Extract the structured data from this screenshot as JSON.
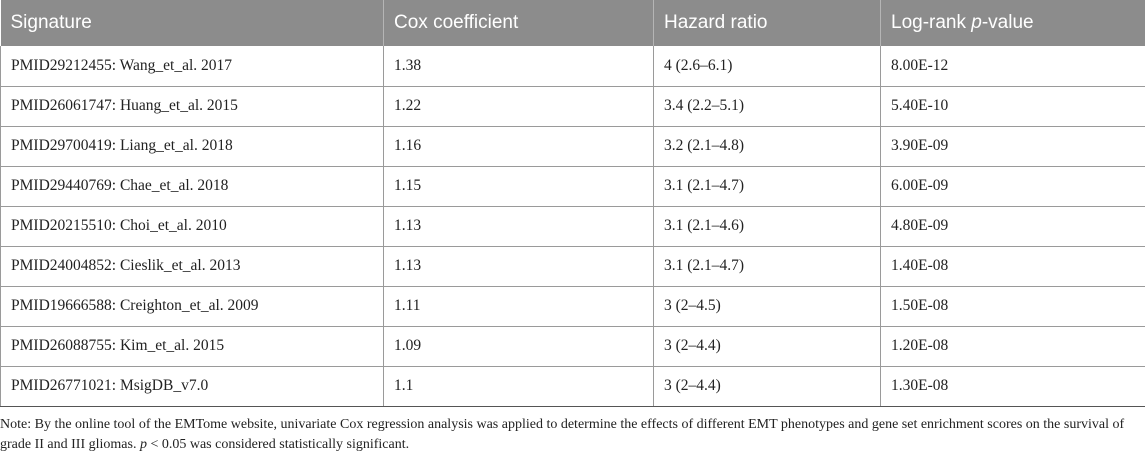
{
  "table": {
    "headers": {
      "signature": "Signature",
      "cox": "Cox coefficient",
      "hr": "Hazard ratio",
      "logrank_prefix": "Log-rank ",
      "logrank_p": "p",
      "logrank_suffix": "-value"
    },
    "rows": [
      {
        "signature": "PMID29212455: Wang_et_al. 2017",
        "cox": "1.38",
        "hr": "4 (2.6–6.1)",
        "p": "8.00E-12"
      },
      {
        "signature": "PMID26061747: Huang_et_al. 2015",
        "cox": "1.22",
        "hr": "3.4 (2.2–5.1)",
        "p": "5.40E-10"
      },
      {
        "signature": "PMID29700419: Liang_et_al. 2018",
        "cox": "1.16",
        "hr": "3.2 (2.1–4.8)",
        "p": "3.90E-09"
      },
      {
        "signature": "PMID29440769: Chae_et_al. 2018",
        "cox": "1.15",
        "hr": "3.1 (2.1–4.7)",
        "p": "6.00E-09"
      },
      {
        "signature": "PMID20215510: Choi_et_al. 2010",
        "cox": "1.13",
        "hr": "3.1 (2.1–4.6)",
        "p": "4.80E-09"
      },
      {
        "signature": "PMID24004852: Cieslik_et_al. 2013",
        "cox": "1.13",
        "hr": "3.1 (2.1–4.7)",
        "p": "1.40E-08"
      },
      {
        "signature": "PMID19666588: Creighton_et_al. 2009",
        "cox": "1.11",
        "hr": "3 (2–4.5)",
        "p": "1.50E-08"
      },
      {
        "signature": "PMID26088755: Kim_et_al. 2015",
        "cox": "1.09",
        "hr": "3 (2–4.4)",
        "p": "1.20E-08"
      },
      {
        "signature": "PMID26771021: MsigDB_v7.0",
        "cox": "1.1",
        "hr": "3 (2–4.4)",
        "p": "1.30E-08"
      }
    ]
  },
  "note": {
    "part1": "Note: By the online tool of the EMTome website, univariate Cox regression analysis was applied to determine the effects of different EMT phenotypes and gene set enrichment scores on the survival of grade II and III gliomas. ",
    "p": "p",
    "part2": " < 0.05 was considered statistically significant."
  }
}
